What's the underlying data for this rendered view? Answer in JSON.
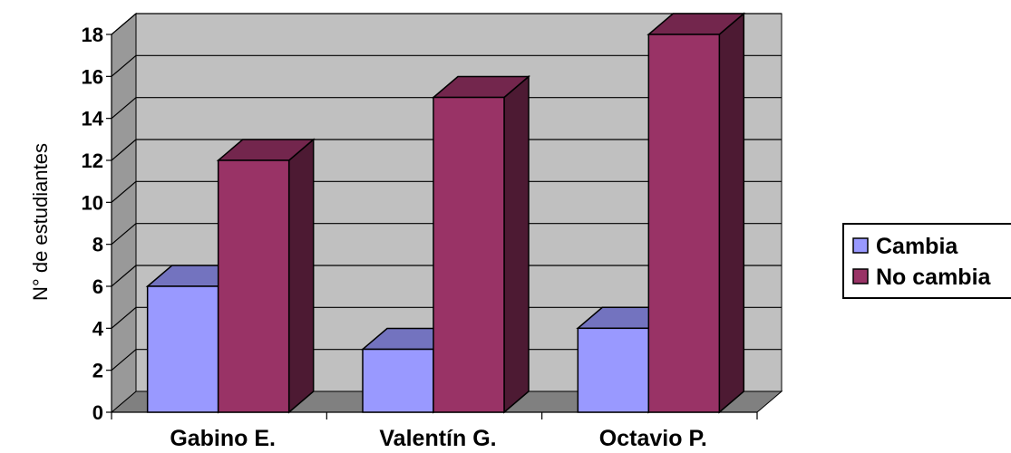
{
  "chart_data": {
    "type": "bar",
    "title": "",
    "xlabel": "",
    "ylabel": "N° de estudiantes",
    "categories": [
      "Gabino E.",
      "Valentín G.",
      "Octavio P."
    ],
    "series": [
      {
        "name": "Cambia",
        "values": [
          6,
          3,
          4
        ],
        "color": "#9999ff"
      },
      {
        "name": "No cambia",
        "values": [
          12,
          15,
          18
        ],
        "color": "#993366"
      }
    ],
    "ylim": [
      0,
      18
    ],
    "yticks": [
      "0",
      "2",
      "4",
      "6",
      "8",
      "10",
      "12",
      "14",
      "16",
      "18"
    ],
    "grid": true,
    "style": "3d-clustered",
    "legend_position": "right"
  }
}
